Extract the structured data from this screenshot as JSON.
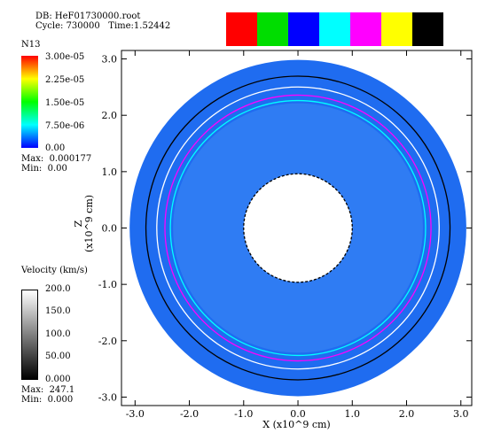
{
  "header": {
    "db_label": "DB: HeF01730000.root",
    "cycle_label": "Cycle: 730000   Time:1.52442"
  },
  "material_swatches": {
    "colors": [
      "#ff0000",
      "#00dd00",
      "#0000ff",
      "#00ffff",
      "#ff00ff",
      "#ffff00",
      "#000000"
    ]
  },
  "n13_legend": {
    "title": "N13",
    "ticks": [
      "3.00e-05",
      "2.25e-05",
      "1.50e-05",
      "7.50e-06",
      "0.00"
    ],
    "max_label": "Max:  0.000177",
    "min_label": "Min:  0.00"
  },
  "velocity_legend": {
    "title": "Velocity (km/s)",
    "ticks": [
      "200.0",
      "150.0",
      "100.0",
      "50.00",
      "0.000"
    ],
    "max_label": "Max:  247.1",
    "min_label": "Min:  0.000"
  },
  "chart_data": {
    "type": "heatmap",
    "xlabel": "X (x10^9 cm)",
    "ylabel": "Z\n(x10^9 cm)",
    "xlim": [
      -3.25,
      3.2
    ],
    "ylim": [
      -3.15,
      3.15
    ],
    "x_ticks": [
      "-3.0",
      "-2.0",
      "-1.0",
      "0.0",
      "1.0",
      "2.0",
      "3.0"
    ],
    "y_ticks": [
      "3.0",
      "2.0",
      "1.0",
      "0.0",
      "-1.0",
      "-2.0",
      "-3.0"
    ],
    "x_tick_values": [
      -3,
      -2,
      -1,
      0,
      1,
      2,
      3
    ],
    "y_tick_values": [
      3,
      2,
      1,
      0,
      -1,
      -2,
      -3
    ],
    "annulus": {
      "inner_radius": 1.0,
      "outer_radius": 3.1
    },
    "contours": [
      {
        "color": "#000000",
        "radius": 2.8
      },
      {
        "color": "#ffffff",
        "radius": 2.6
      },
      {
        "color": "#ff00ff",
        "radius": 2.45
      },
      {
        "color": "#00ffff",
        "radius": 2.35
      },
      {
        "color": "#000000",
        "radius": 1.0,
        "dashed": true
      }
    ]
  }
}
